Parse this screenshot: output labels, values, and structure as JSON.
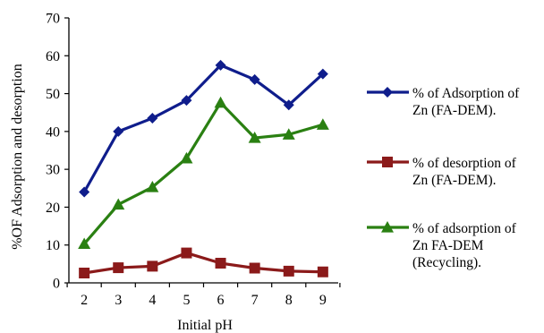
{
  "chart_data": {
    "type": "line",
    "title": "",
    "xlabel": "Initial pH",
    "ylabel": "%OF Adsorption and desorption",
    "x": [
      2,
      3,
      4,
      5,
      6,
      7,
      8,
      9
    ],
    "xlim": [
      2,
      9
    ],
    "ylim": [
      0,
      70
    ],
    "yticks": [
      0,
      10,
      20,
      30,
      40,
      50,
      60,
      70
    ],
    "grid": false,
    "legend_position": "right",
    "series": [
      {
        "name": "% of Adsorption of Zn (FA-DEM).",
        "legend_lines": [
          "% of Adsorption of",
          "Zn (FA-DEM)."
        ],
        "marker": "diamond",
        "color": "#0f1d8c",
        "values": [
          24,
          40,
          43.5,
          48.2,
          57.5,
          53.7,
          47,
          55.2
        ]
      },
      {
        "name": "% of desorption of Zn (FA-DEM).",
        "legend_lines": [
          "% of desorption of",
          "Zn (FA-DEM)."
        ],
        "marker": "square",
        "color": "#8b1a1a",
        "values": [
          2.6,
          4,
          4.4,
          7.9,
          5.2,
          3.9,
          3.1,
          2.9
        ]
      },
      {
        "name": "% of adsorption of Zn FA-DEM (Recycling).",
        "legend_lines": [
          "% of adsorption of",
          "Zn FA-DEM",
          "(Recycling)."
        ],
        "marker": "triangle",
        "color": "#2a8012",
        "values": [
          10.3,
          20.7,
          25.3,
          32.9,
          47.6,
          38.3,
          39.2,
          41.8
        ]
      }
    ]
  }
}
